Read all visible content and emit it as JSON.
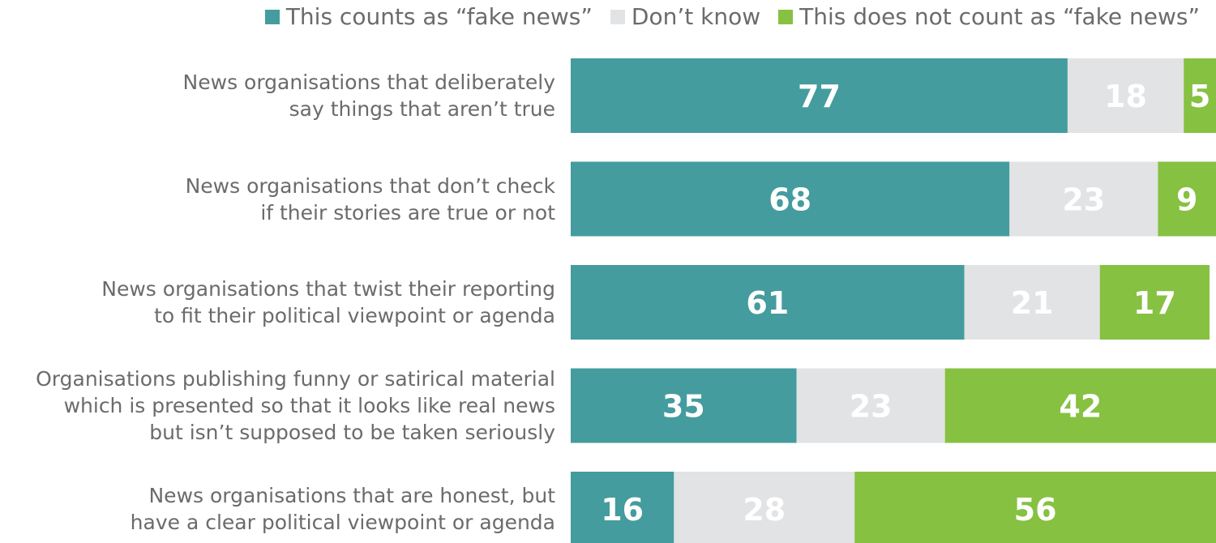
{
  "chart_data": {
    "type": "bar",
    "orientation": "horizontal",
    "stacked": true,
    "legend_position": "top-right",
    "grid": false,
    "xlim": [
      0,
      100
    ],
    "categories": [
      [
        "News organisations that deliberately",
        "say things that aren’t true"
      ],
      [
        "News organisations that don’t check",
        "if their stories are true or not"
      ],
      [
        "News organisations that twist their reporting",
        "to fit their political viewpoint or agenda"
      ],
      [
        "Organisations publishing funny or satirical material",
        "which is presented so that it looks like real news",
        "but isn’t supposed to be taken seriously"
      ],
      [
        "News organisations that are honest, but",
        "have a clear political viewpoint or agenda"
      ]
    ],
    "series": [
      {
        "name": "This counts as “fake news”",
        "color": "#449c9e",
        "label_color": "#ffffff",
        "values": [
          77,
          68,
          61,
          35,
          16
        ]
      },
      {
        "name": "Don’t know",
        "color": "#e2e3e4",
        "label_color": "#ffffff",
        "values": [
          18,
          23,
          21,
          23,
          28
        ]
      },
      {
        "name": "This does not count as “fake news”",
        "color": "#86c141",
        "label_color": "#ffffff",
        "values": [
          5,
          9,
          17,
          42,
          56
        ]
      }
    ]
  }
}
